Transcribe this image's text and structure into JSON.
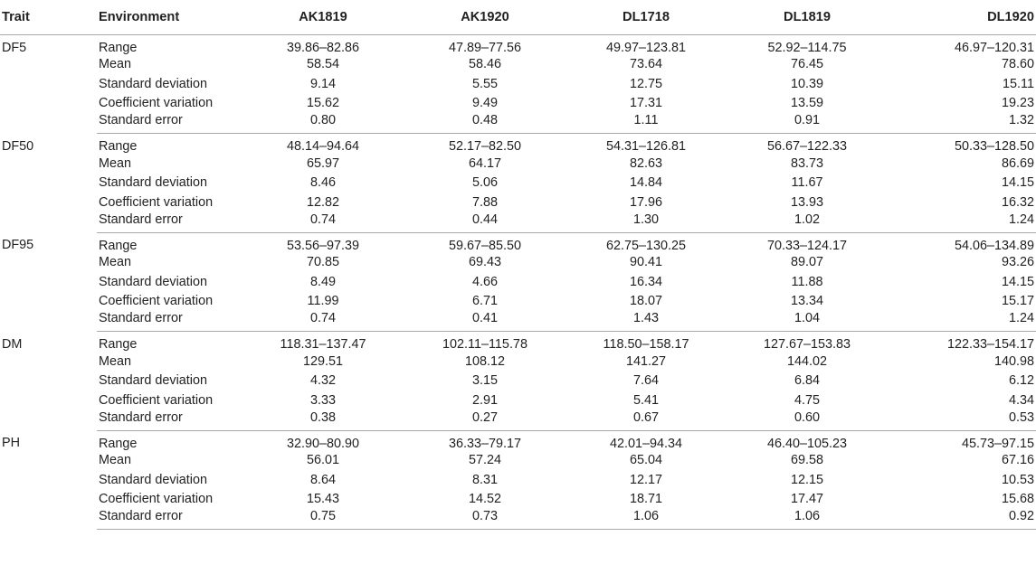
{
  "table": {
    "headers": {
      "trait": "Trait",
      "environment": "Environment",
      "envs": [
        "AK1819",
        "AK1920",
        "DL1718",
        "DL1819",
        "DL1920"
      ]
    },
    "groups": [
      {
        "trait": "DF5",
        "rows": [
          {
            "stat": "Range",
            "values": [
              "39.86–82.86",
              "47.89–77.56",
              "49.97–123.81",
              "52.92–114.75",
              "46.97–120.31"
            ]
          },
          {
            "stat": "Mean",
            "values": [
              "58.54",
              "58.46",
              "73.64",
              "76.45",
              "78.60"
            ]
          },
          {
            "stat": "Standard deviation",
            "values": [
              "9.14",
              "5.55",
              "12.75",
              "10.39",
              "15.11"
            ]
          },
          {
            "stat": "Coefficient variation",
            "values": [
              "15.62",
              "9.49",
              "17.31",
              "13.59",
              "19.23"
            ]
          },
          {
            "stat": "Standard error",
            "values": [
              "0.80",
              "0.48",
              "1.11",
              "0.91",
              "1.32"
            ]
          }
        ]
      },
      {
        "trait": "DF50",
        "rows": [
          {
            "stat": "Range",
            "values": [
              "48.14–94.64",
              "52.17–82.50",
              "54.31–126.81",
              "56.67–122.33",
              "50.33–128.50"
            ]
          },
          {
            "stat": "Mean",
            "values": [
              "65.97",
              "64.17",
              "82.63",
              "83.73",
              "86.69"
            ]
          },
          {
            "stat": "Standard deviation",
            "values": [
              "8.46",
              "5.06",
              "14.84",
              "11.67",
              "14.15"
            ]
          },
          {
            "stat": "Coefficient variation",
            "values": [
              "12.82",
              "7.88",
              "17.96",
              "13.93",
              "16.32"
            ]
          },
          {
            "stat": "Standard error",
            "values": [
              "0.74",
              "0.44",
              "1.30",
              "1.02",
              "1.24"
            ]
          }
        ]
      },
      {
        "trait": "DF95",
        "rows": [
          {
            "stat": "Range",
            "values": [
              "53.56–97.39",
              "59.67–85.50",
              "62.75–130.25",
              "70.33–124.17",
              "54.06–134.89"
            ]
          },
          {
            "stat": "Mean",
            "values": [
              "70.85",
              "69.43",
              "90.41",
              "89.07",
              "93.26"
            ]
          },
          {
            "stat": "Standard deviation",
            "values": [
              "8.49",
              "4.66",
              "16.34",
              "11.88",
              "14.15"
            ]
          },
          {
            "stat": "Coefficient variation",
            "values": [
              "11.99",
              "6.71",
              "18.07",
              "13.34",
              "15.17"
            ]
          },
          {
            "stat": "Standard error",
            "values": [
              "0.74",
              "0.41",
              "1.43",
              "1.04",
              "1.24"
            ]
          }
        ]
      },
      {
        "trait": "DM",
        "rows": [
          {
            "stat": "Range",
            "values": [
              "118.31–137.47",
              "102.11–115.78",
              "118.50–158.17",
              "127.67–153.83",
              "122.33–154.17"
            ]
          },
          {
            "stat": "Mean",
            "values": [
              "129.51",
              "108.12",
              "141.27",
              "144.02",
              "140.98"
            ]
          },
          {
            "stat": "Standard deviation",
            "values": [
              "4.32",
              "3.15",
              "7.64",
              "6.84",
              "6.12"
            ]
          },
          {
            "stat": "Coefficient variation",
            "values": [
              "3.33",
              "2.91",
              "5.41",
              "4.75",
              "4.34"
            ]
          },
          {
            "stat": "Standard error",
            "values": [
              "0.38",
              "0.27",
              "0.67",
              "0.60",
              "0.53"
            ]
          }
        ]
      },
      {
        "trait": "PH",
        "rows": [
          {
            "stat": "Range",
            "values": [
              "32.90–80.90",
              "36.33–79.17",
              "42.01–94.34",
              "46.40–105.23",
              "45.73–97.15"
            ]
          },
          {
            "stat": "Mean",
            "values": [
              "56.01",
              "57.24",
              "65.04",
              "69.58",
              "67.16"
            ]
          },
          {
            "stat": "Standard deviation",
            "values": [
              "8.64",
              "8.31",
              "12.17",
              "12.15",
              "10.53"
            ]
          },
          {
            "stat": "Coefficient variation",
            "values": [
              "15.43",
              "14.52",
              "18.71",
              "17.47",
              "15.68"
            ]
          },
          {
            "stat": "Standard error",
            "values": [
              "0.75",
              "0.73",
              "1.06",
              "1.06",
              "0.92"
            ]
          }
        ]
      }
    ]
  }
}
